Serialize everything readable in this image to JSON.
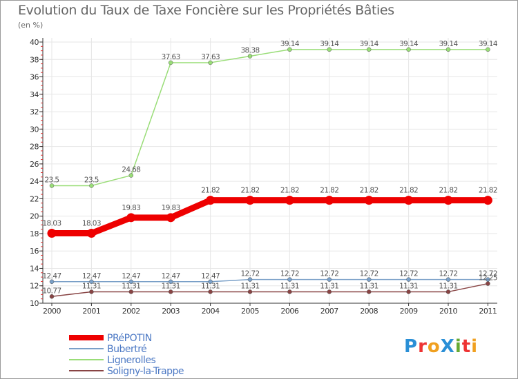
{
  "chart_data": {
    "type": "line",
    "title": "Evolution du Taux de Taxe Foncière sur les Propriétés Bâties",
    "ylabel": "(en %)",
    "xlabel": "",
    "categories": [
      "2000",
      "2001",
      "2002",
      "2003",
      "2004",
      "2005",
      "2006",
      "2007",
      "2008",
      "2009",
      "2010",
      "2011"
    ],
    "ylim": [
      10,
      40
    ],
    "yticks": [
      10,
      12,
      14,
      16,
      18,
      20,
      22,
      24,
      26,
      28,
      30,
      32,
      34,
      36,
      38,
      40
    ],
    "series": [
      {
        "name": "PRéPOTIN",
        "color": "#ee0000",
        "width": 9,
        "values": [
          18.03,
          18.03,
          19.83,
          19.83,
          21.82,
          21.82,
          21.82,
          21.82,
          21.82,
          21.82,
          21.82,
          21.82
        ],
        "labels": [
          "18.03",
          "18.03",
          "19.83",
          "19.83",
          "21.82",
          "21.82",
          "21.82",
          "21.82",
          "21.82",
          "21.82",
          "21.82",
          "21.82"
        ]
      },
      {
        "name": "Bubertré",
        "color": "#7aa0c8",
        "width": 1.5,
        "values": [
          12.47,
          12.47,
          12.47,
          12.47,
          12.47,
          12.72,
          12.72,
          12.72,
          12.72,
          12.72,
          12.72,
          12.72
        ],
        "labels": [
          "12.47",
          "12.47",
          "12.47",
          "12.47",
          "12.47",
          "12.72",
          "12.72",
          "12.72",
          "12.72",
          "12.72",
          "12.72",
          "12.72"
        ]
      },
      {
        "name": "Lignerolles",
        "color": "#99dd77",
        "width": 1.5,
        "values": [
          23.5,
          23.5,
          24.68,
          37.63,
          37.63,
          38.38,
          39.14,
          39.14,
          39.14,
          39.14,
          39.14,
          39.14
        ],
        "labels": [
          "23.5",
          "23.5",
          "24.68",
          "37.63",
          "37.63",
          "38.38",
          "39.14",
          "39.14",
          "39.14",
          "39.14",
          "39.14",
          "39.14"
        ]
      },
      {
        "name": "Soligny-la-Trappe",
        "color": "#884444",
        "width": 1.5,
        "values": [
          10.77,
          11.31,
          11.31,
          11.31,
          11.31,
          11.31,
          11.31,
          11.31,
          11.31,
          11.31,
          11.31,
          12.25
        ],
        "labels": [
          "10.77",
          "11.31",
          "11.31",
          "11.31",
          "11.31",
          "11.31",
          "11.31",
          "11.31",
          "11.31",
          "11.31",
          "11.31",
          "12.25"
        ]
      }
    ]
  },
  "logo": {
    "text": "ProXiti",
    "colors": [
      "#2a8fd6",
      "#ee3333",
      "#f0a020",
      "#2a8fd6",
      "#66aa33",
      "#ee3333",
      "#f0a020"
    ]
  }
}
